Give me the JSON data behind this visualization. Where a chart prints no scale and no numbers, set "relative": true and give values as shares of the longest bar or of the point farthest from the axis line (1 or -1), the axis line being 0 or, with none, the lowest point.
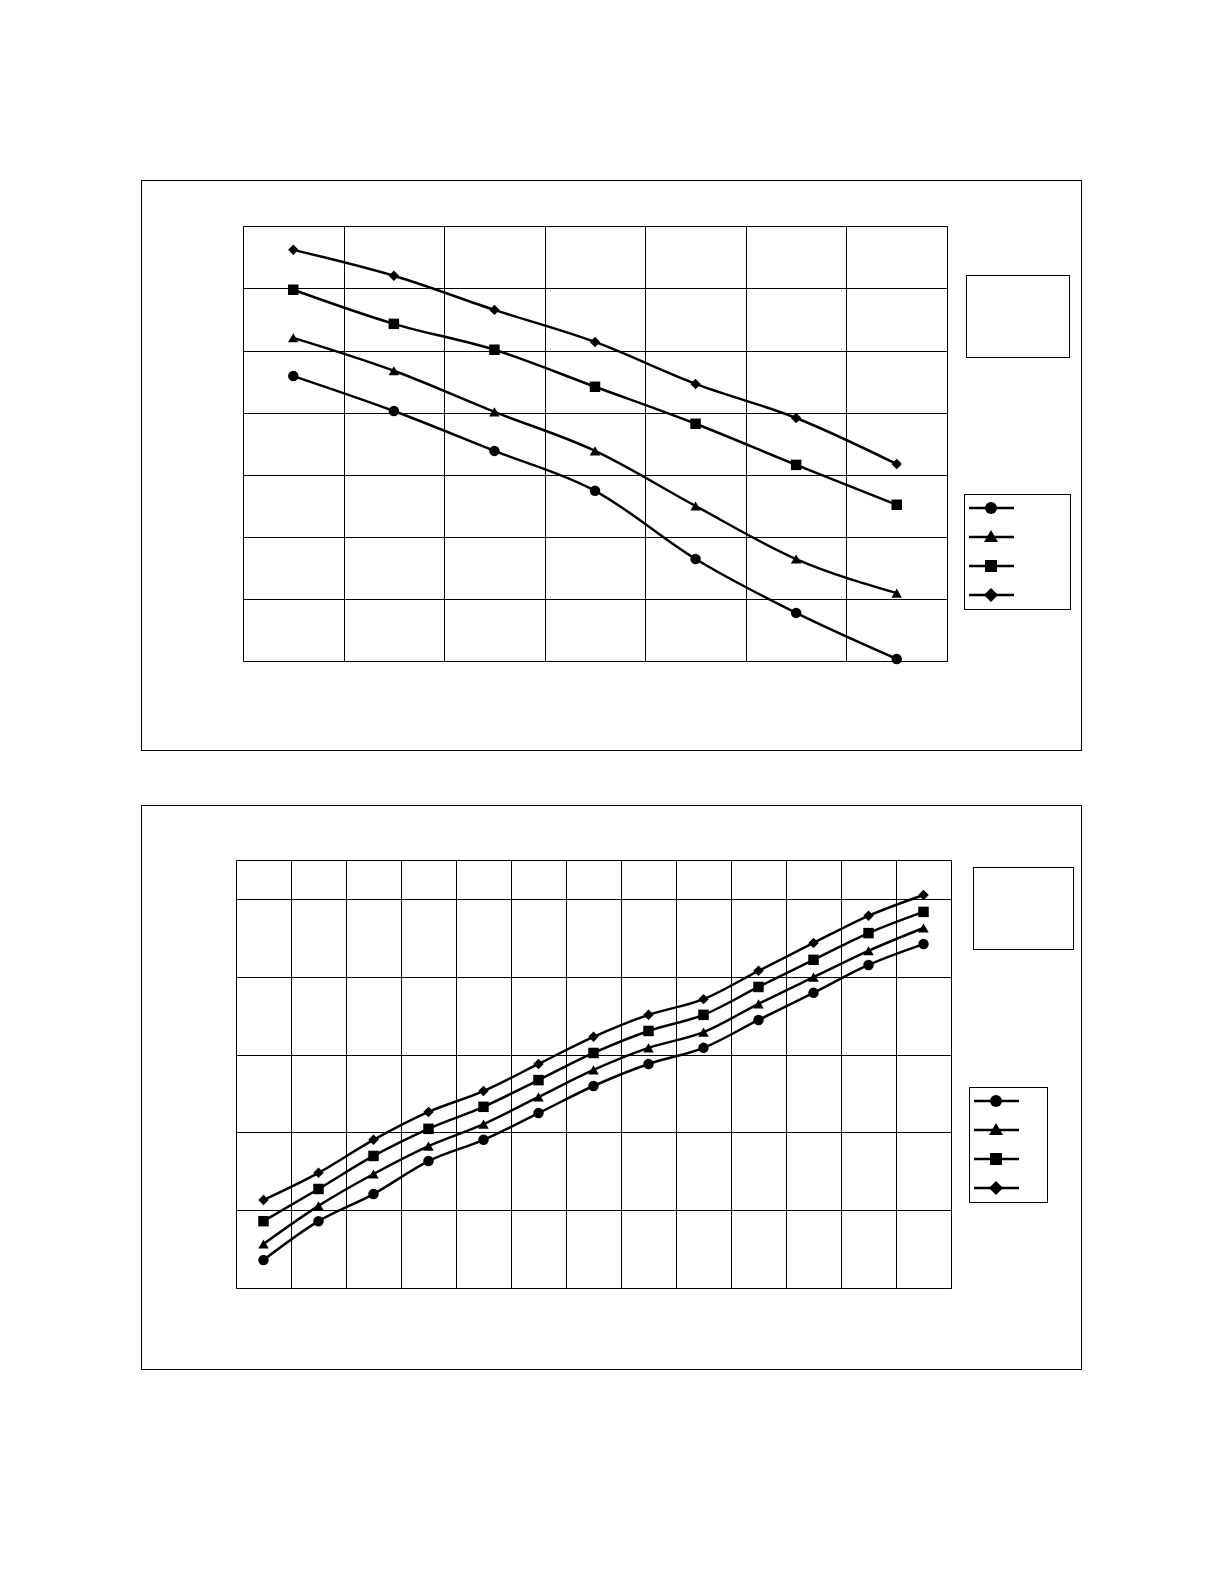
{
  "chart_data": [
    {
      "type": "line",
      "relative": true,
      "grid": true,
      "tick_labels": false,
      "line_style": "solid",
      "categories": [
        null,
        null,
        null,
        null,
        null,
        null,
        null
      ],
      "series": [
        {
          "color": "#000000",
          "marker": "circle",
          "values": [
            0.693,
            0.608,
            0.511,
            0.414,
            0.248,
            0.117,
            0.005
          ]
        },
        {
          "color": "#000000",
          "marker": "triangle",
          "values": [
            0.786,
            0.706,
            0.606,
            0.511,
            0.377,
            0.248,
            0.165
          ]
        },
        {
          "color": "#000000",
          "marker": "square",
          "values": [
            0.903,
            0.82,
            0.757,
            0.667,
            0.577,
            0.477,
            0.38
          ]
        },
        {
          "color": "#000000",
          "marker": "diamond",
          "values": [
            1,
            0.937,
            0.854,
            0.776,
            0.674,
            0.591,
            0.479
          ]
        }
      ]
    },
    {
      "type": "line",
      "relative": true,
      "grid": true,
      "tick_labels": false,
      "line_style": "solid",
      "categories": [
        null,
        null,
        null,
        null,
        null,
        null,
        null,
        null,
        null,
        null,
        null,
        null,
        null
      ],
      "series": [
        {
          "color": "#000000",
          "marker": "circle",
          "values": [
            0.071,
            0.17,
            0.239,
            0.323,
            0.377,
            0.445,
            0.514,
            0.57,
            0.611,
            0.682,
            0.751,
            0.822,
            0.875
          ]
        },
        {
          "color": "#000000",
          "marker": "triangle",
          "values": [
            0.112,
            0.209,
            0.29,
            0.361,
            0.417,
            0.486,
            0.555,
            0.611,
            0.651,
            0.723,
            0.791,
            0.858,
            0.916
          ]
        },
        {
          "color": "#000000",
          "marker": "square",
          "values": [
            0.17,
            0.252,
            0.336,
            0.405,
            0.461,
            0.529,
            0.598,
            0.654,
            0.695,
            0.766,
            0.835,
            0.903,
            0.957
          ]
        },
        {
          "color": "#000000",
          "marker": "diamond",
          "values": [
            0.224,
            0.293,
            0.377,
            0.448,
            0.501,
            0.57,
            0.639,
            0.695,
            0.735,
            0.807,
            0.878,
            0.947,
            1
          ]
        }
      ]
    }
  ]
}
